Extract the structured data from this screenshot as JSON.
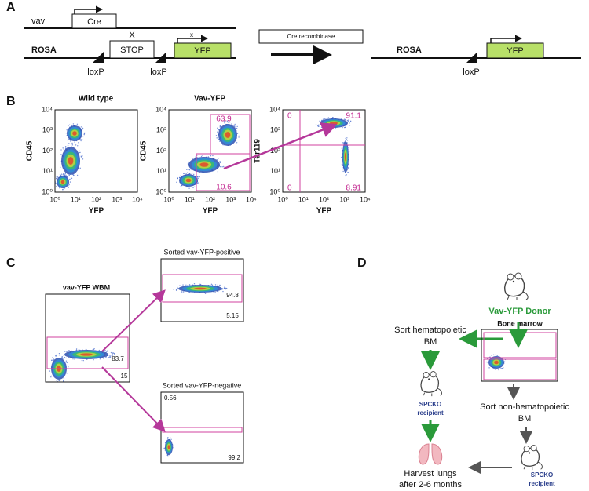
{
  "panel_a": {
    "label": "A",
    "vav": "vav",
    "cre": "Cre",
    "rosa": "ROSA",
    "stop_mark": "X",
    "stop": "STOP",
    "yfp_mark": "x",
    "yfp": "YFP",
    "loxp_left": "loxP",
    "loxp_right": "loxP",
    "enzyme": "Cre recombinase",
    "result_rosa": "ROSA",
    "result_yfp": "YFP",
    "result_loxp": "loxP"
  },
  "panel_b": {
    "label": "B",
    "axis_ticks": [
      "10⁰",
      "10¹",
      "10²",
      "10³",
      "10⁴"
    ],
    "plots": [
      {
        "title": "Wild type",
        "xlabel": "YFP",
        "ylabel": "CD45"
      },
      {
        "title": "Vav-YFP",
        "xlabel": "YFP",
        "ylabel": "CD45",
        "gate_labels": [
          "63.9",
          "10.6"
        ]
      },
      {
        "xlabel": "YFP",
        "ylabel": "Ter119",
        "quadrant_labels": [
          "0",
          "91.1",
          "0",
          "8.91"
        ]
      }
    ]
  },
  "panel_c": {
    "label": "C",
    "plots": [
      {
        "title": "vav-YFP WBM",
        "gate_labels": [
          "83.7",
          "15"
        ]
      },
      {
        "title": "Sorted vav-YFP-positive",
        "gate_labels": [
          "94.8",
          "5.15"
        ]
      },
      {
        "title": "Sorted vav-YFP-negative",
        "gate_labels": [
          "0.56",
          "99.2"
        ]
      }
    ]
  },
  "panel_d": {
    "label": "D",
    "donor": "Vav-YFP Donor",
    "source": "Bone marrow",
    "sort_hematopoietic": [
      "Sort hematopoietic",
      "BM"
    ],
    "sort_non_hematopoietic": [
      "Sort non-hematopoietic",
      "BM"
    ],
    "recipient_left": [
      "SPCKO",
      "recipient"
    ],
    "recipient_right": [
      "SPCKO",
      "recipient"
    ],
    "outcome": [
      "Harvest lungs",
      "after 2-6 months"
    ]
  }
}
